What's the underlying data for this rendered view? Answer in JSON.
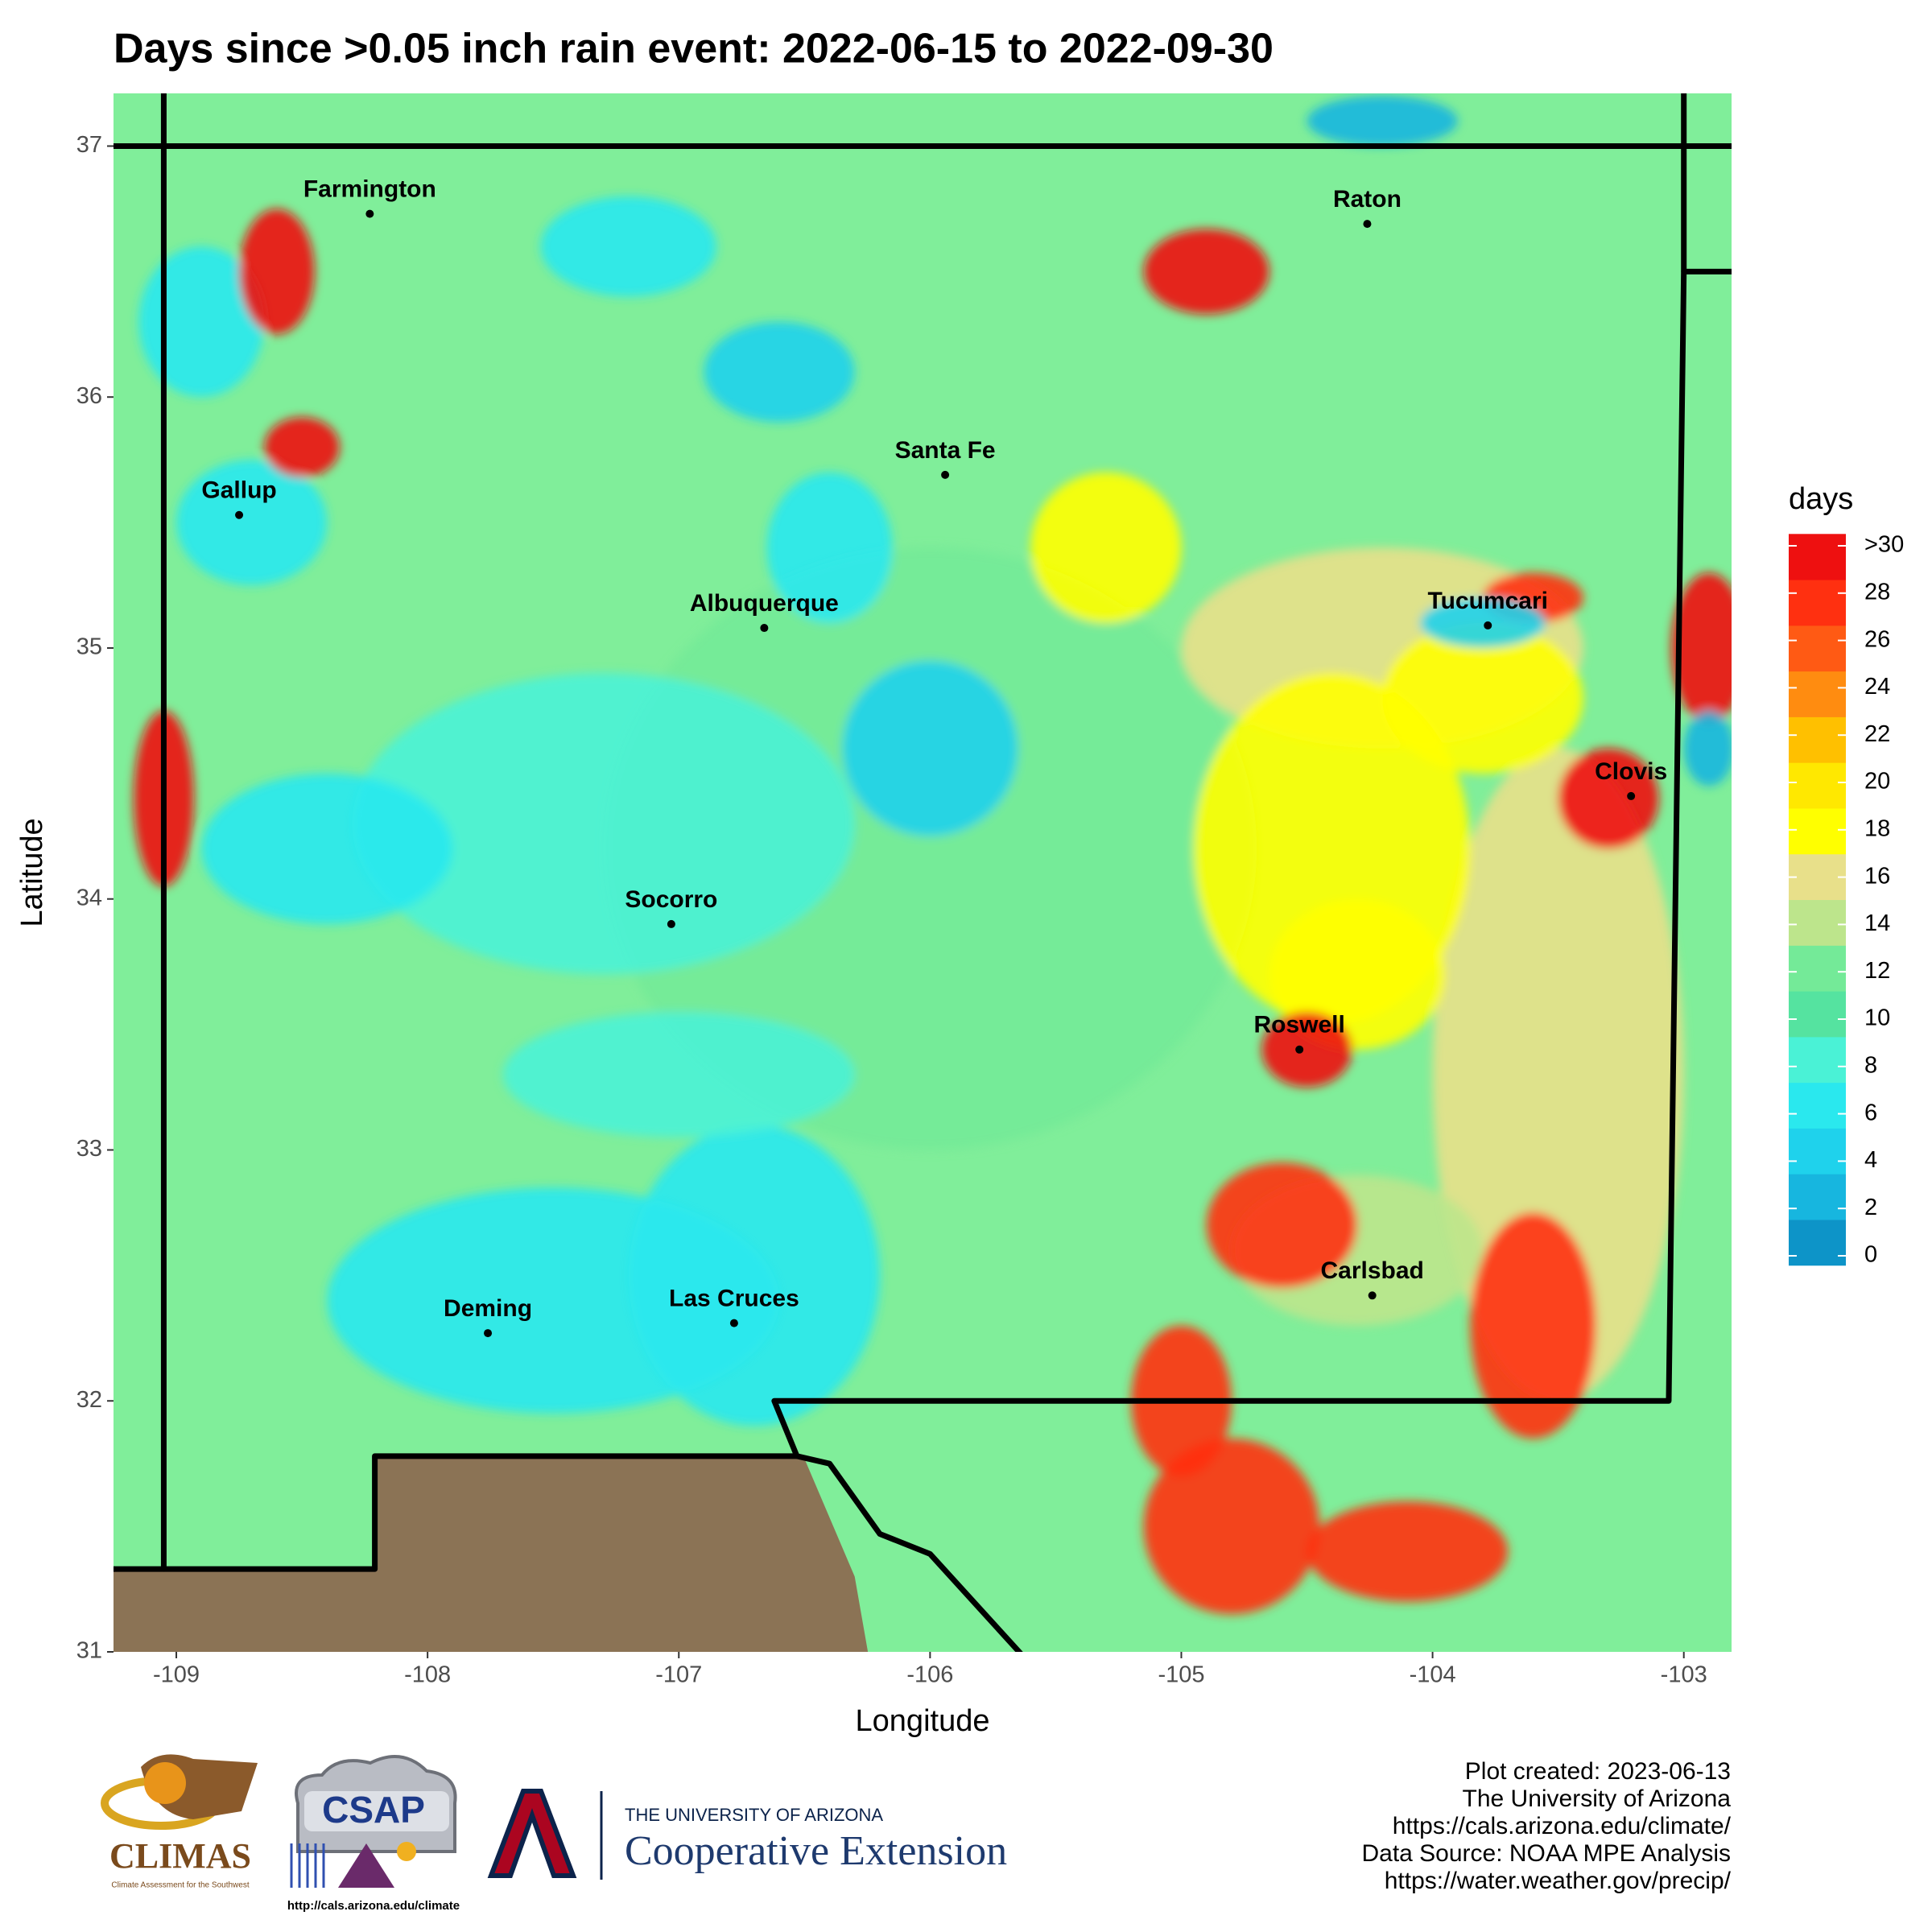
{
  "map": {
    "title": "Days since >0.05 inch rain event: 2022-06-15 to 2022-09-30",
    "x_label": "Longitude",
    "y_label": "Latitude",
    "xlim": [
      -109.25,
      -102.81
    ],
    "ylim": [
      31,
      37.21
    ],
    "xticks": [
      -109,
      -108,
      -107,
      -106,
      -105,
      -104,
      -103
    ],
    "yticks": [
      31,
      32,
      33,
      34,
      35,
      36,
      37
    ],
    "cities": [
      {
        "name": "Farmington",
        "lon": -108.23,
        "lat": 36.73
      },
      {
        "name": "Raton",
        "lon": -104.26,
        "lat": 36.69
      },
      {
        "name": "Gallup",
        "lon": -108.75,
        "lat": 35.53
      },
      {
        "name": "Santa Fe",
        "lon": -105.94,
        "lat": 35.69
      },
      {
        "name": "Albuquerque",
        "lon": -106.66,
        "lat": 35.08
      },
      {
        "name": "Tucumcari",
        "lon": -103.78,
        "lat": 35.09
      },
      {
        "name": "Clovis",
        "lon": -103.21,
        "lat": 34.41
      },
      {
        "name": "Socorro",
        "lon": -107.03,
        "lat": 33.9
      },
      {
        "name": "Roswell",
        "lon": -104.53,
        "lat": 33.4
      },
      {
        "name": "Carlsbad",
        "lon": -104.24,
        "lat": 32.42
      },
      {
        "name": "Deming",
        "lon": -107.76,
        "lat": 32.27
      },
      {
        "name": "Las Cruces",
        "lon": -106.78,
        "lat": 32.31
      }
    ],
    "legend": {
      "title": "days",
      "ticks": [
        0,
        2,
        4,
        6,
        8,
        10,
        12,
        14,
        16,
        18,
        20,
        22,
        24,
        26,
        28,
        {
          "value": 30,
          "label": ">30"
        }
      ],
      "colors": [
        "#0d94c8",
        "#17b6df",
        "#1fd2ec",
        "#2ae8ee",
        "#4af2d6",
        "#55e3a0",
        "#74ea98",
        "#bde58c",
        "#e8e08a",
        "#ffff00",
        "#ffe800",
        "#ffc000",
        "#ff8c10",
        "#ff5a14",
        "#ff3010",
        "#ee1010"
      ]
    },
    "footer": [
      "Plot created: 2023-06-13",
      "The University of Arizona",
      "https://cals.arizona.edu/climate/",
      "Data Source: NOAA MPE Analysis",
      "https://water.weather.gov/precip/"
    ],
    "logos": {
      "climas": "CLIMAS",
      "climas_sub": "Climate Assessment for the Southwest",
      "csap": "CSAP",
      "csap_url": "http://cals.arizona.edu/climate",
      "ua": "THE UNIVERSITY OF ARIZONA",
      "extension": "Cooperative Extension"
    }
  }
}
